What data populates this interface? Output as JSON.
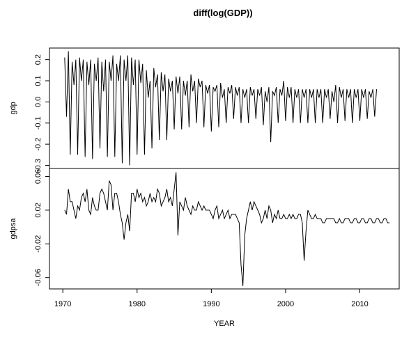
{
  "chart_data": {
    "type": "line",
    "title": "diff(log(GDP))",
    "xlabel": "YEAR",
    "xlim": [
      1968.2,
      2015.3
    ],
    "x_ticks": [
      1970,
      1980,
      1990,
      2000,
      2010
    ],
    "x_start": 1970.25,
    "x_step": 0.25,
    "line_color": "#000000",
    "panels": [
      {
        "name": "gdp",
        "ylabel": "gdp",
        "ylim": [
          -0.305,
          0.245
        ],
        "y_ticks": [
          -0.3,
          -0.2,
          -0.1,
          0.0,
          0.1,
          0.2
        ],
        "y_tick_labels": [
          "-0.3",
          "-0.2",
          "-0.1",
          "0.0",
          "0.1",
          "0.2"
        ],
        "values": [
          0.21,
          -0.07,
          0.24,
          -0.25,
          0.19,
          0.08,
          0.2,
          -0.25,
          0.21,
          0.1,
          0.2,
          -0.26,
          0.19,
          0.08,
          0.2,
          -0.27,
          0.18,
          0.1,
          0.21,
          -0.22,
          0.19,
          0.05,
          0.2,
          -0.26,
          0.19,
          0.1,
          0.22,
          -0.26,
          0.18,
          0.1,
          0.22,
          -0.29,
          0.2,
          0.1,
          0.22,
          -0.3,
          0.21,
          0.08,
          0.2,
          -0.25,
          0.2,
          0.09,
          0.18,
          -0.25,
          0.15,
          0.02,
          0.1,
          -0.22,
          0.16,
          0.07,
          0.13,
          -0.18,
          0.14,
          0.05,
          0.13,
          -0.18,
          0.11,
          0.05,
          0.1,
          -0.13,
          0.12,
          0.04,
          0.12,
          -0.13,
          0.1,
          0.03,
          0.1,
          -0.12,
          0.13,
          0.05,
          0.1,
          -0.1,
          0.11,
          0.07,
          0.1,
          -0.12,
          0.08,
          0.04,
          0.08,
          -0.14,
          0.07,
          0.05,
          0.08,
          -0.12,
          0.09,
          0.02,
          0.06,
          -0.1,
          0.07,
          0.04,
          0.08,
          -0.08,
          0.07,
          0.03,
          0.07,
          -0.1,
          0.06,
          0.02,
          0.06,
          -0.1,
          0.07,
          0.03,
          0.06,
          -0.08,
          0.06,
          0.03,
          0.07,
          -0.11,
          0.05,
          0.0,
          0.07,
          -0.19,
          0.05,
          0.03,
          0.07,
          -0.1,
          0.06,
          0.03,
          0.1,
          -0.09,
          0.07,
          0.02,
          0.07,
          -0.1,
          0.06,
          0.02,
          0.06,
          -0.1,
          0.06,
          0.02,
          0.06,
          -0.1,
          0.06,
          0.02,
          0.06,
          -0.1,
          0.06,
          0.02,
          0.06,
          -0.1,
          0.06,
          0.02,
          0.06,
          -0.08,
          0.05,
          0.0,
          0.08,
          -0.1,
          0.07,
          0.02,
          0.06,
          -0.09,
          0.06,
          0.02,
          0.06,
          -0.1,
          0.06,
          0.02,
          0.06,
          -0.09,
          0.06,
          0.02,
          0.06,
          -0.08,
          0.05,
          0.02,
          0.06,
          -0.07,
          0.06
        ]
      },
      {
        "name": "gdpsa",
        "ylabel": "gdpsa",
        "ylim": [
          -0.071,
          0.067
        ],
        "y_ticks": [
          -0.06,
          -0.02,
          0.02,
          0.06
        ],
        "y_tick_labels": [
          "-0.06",
          "-0.02",
          "0.02",
          "0.06"
        ],
        "values": [
          0.02,
          0.015,
          0.045,
          0.03,
          0.03,
          0.02,
          0.01,
          0.025,
          0.02,
          0.035,
          0.04,
          0.03,
          0.045,
          0.02,
          0.015,
          0.035,
          0.025,
          0.02,
          0.02,
          0.04,
          0.045,
          0.04,
          0.03,
          0.02,
          0.055,
          0.05,
          0.02,
          0.04,
          0.04,
          0.03,
          0.015,
          0.005,
          -0.015,
          0.005,
          0.015,
          -0.005,
          0.04,
          0.04,
          0.03,
          0.045,
          0.035,
          0.04,
          0.03,
          0.035,
          0.025,
          0.03,
          0.04,
          0.03,
          0.035,
          0.03,
          0.045,
          0.04,
          0.025,
          0.03,
          0.035,
          0.045,
          0.03,
          0.035,
          0.025,
          0.045,
          0.065,
          -0.01,
          0.03,
          0.025,
          0.02,
          0.035,
          0.025,
          0.02,
          0.015,
          0.025,
          0.02,
          0.02,
          0.03,
          0.025,
          0.02,
          0.025,
          0.02,
          0.02,
          0.02,
          0.015,
          0.01,
          0.02,
          0.025,
          0.01,
          0.015,
          0.02,
          0.01,
          0.015,
          0.02,
          0.01,
          0.015,
          0.015,
          0.015,
          0.01,
          0.005,
          -0.045,
          -0.07,
          -0.01,
          0.01,
          0.02,
          0.03,
          0.02,
          0.03,
          0.025,
          0.02,
          0.015,
          0.005,
          0.01,
          0.02,
          0.01,
          0.025,
          0.02,
          0.005,
          0.015,
          0.01,
          0.02,
          0.01,
          0.01,
          0.015,
          0.01,
          0.01,
          0.015,
          0.01,
          0.015,
          0.01,
          0.01,
          0.015,
          0.015,
          0.005,
          -0.04,
          -0.005,
          0.02,
          0.015,
          0.01,
          0.01,
          0.015,
          0.01,
          0.01,
          0.01,
          0.005,
          0.005,
          0.01,
          0.01,
          0.01,
          0.01,
          0.01,
          0.005,
          0.005,
          0.01,
          0.005,
          0.005,
          0.01,
          0.01,
          0.01,
          0.005,
          0.005,
          0.01,
          0.01,
          0.005,
          0.005,
          0.01,
          0.01,
          0.005,
          0.005,
          0.01,
          0.01,
          0.005,
          0.005,
          0.01,
          0.01,
          0.005,
          0.005,
          0.01,
          0.01,
          0.005,
          0.005
        ]
      }
    ]
  }
}
